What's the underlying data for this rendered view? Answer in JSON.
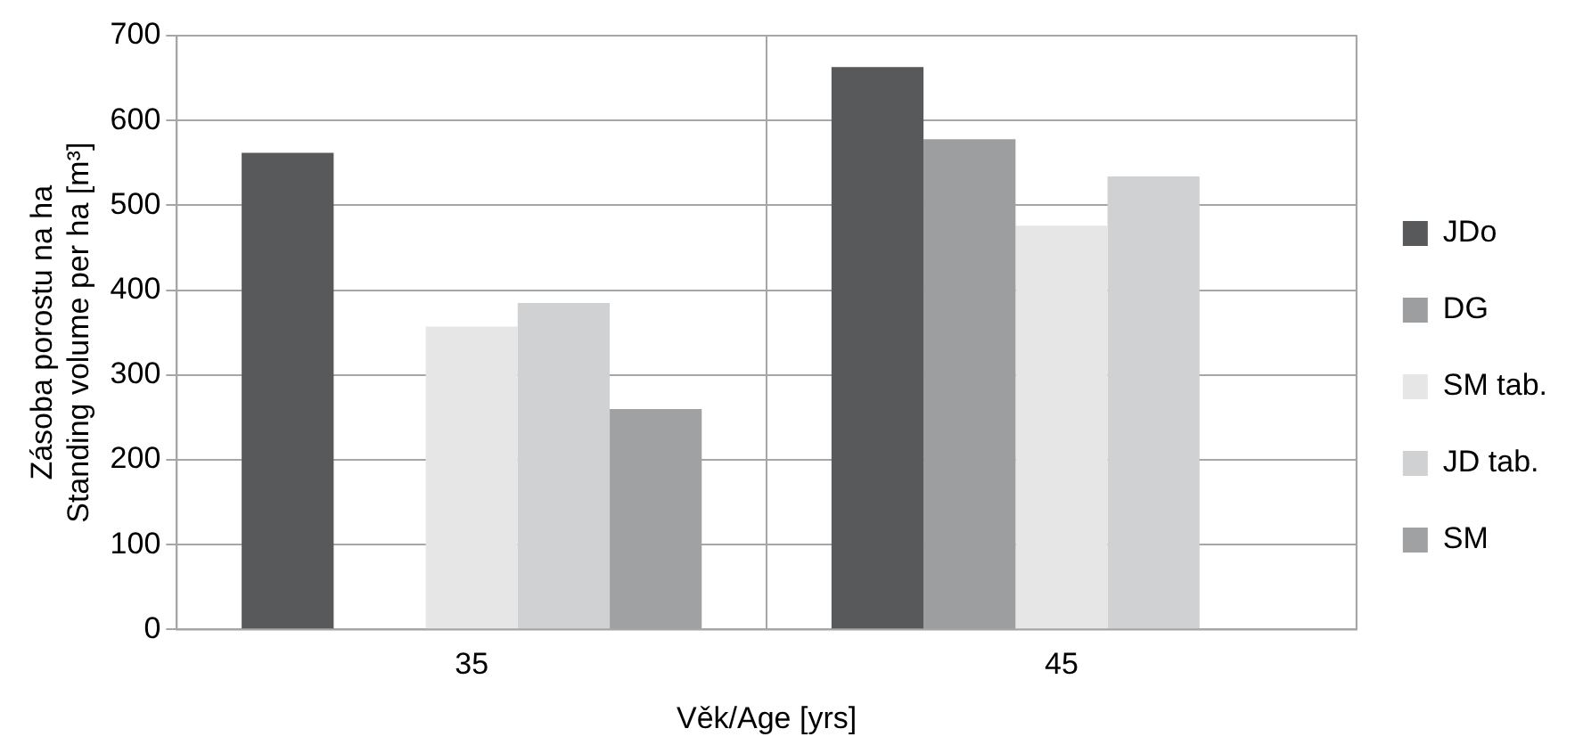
{
  "chart_data": {
    "type": "bar",
    "xlabel": "Věk/Age [yrs]",
    "ylabel": "Zásoba porostu na ha\nStanding volume per ha [m³]",
    "categories": [
      "35",
      "45"
    ],
    "series": [
      {
        "name": "JDo",
        "color": "#58595b",
        "values": [
          562,
          663
        ]
      },
      {
        "name": "DG",
        "color": "#9d9ea0",
        "values": [
          null,
          578
        ]
      },
      {
        "name": "SM tab.",
        "color": "#e6e6e6",
        "values": [
          357,
          476
        ]
      },
      {
        "name": "JD tab.",
        "color": "#d0d1d3",
        "values": [
          385,
          534
        ]
      },
      {
        "name": "SM",
        "color": "#a0a1a3",
        "values": [
          260,
          null
        ]
      }
    ],
    "ylim": [
      0,
      700
    ],
    "yticks": [
      0,
      100,
      200,
      300,
      400,
      500,
      600,
      700
    ],
    "grid": true,
    "legend": "right"
  }
}
